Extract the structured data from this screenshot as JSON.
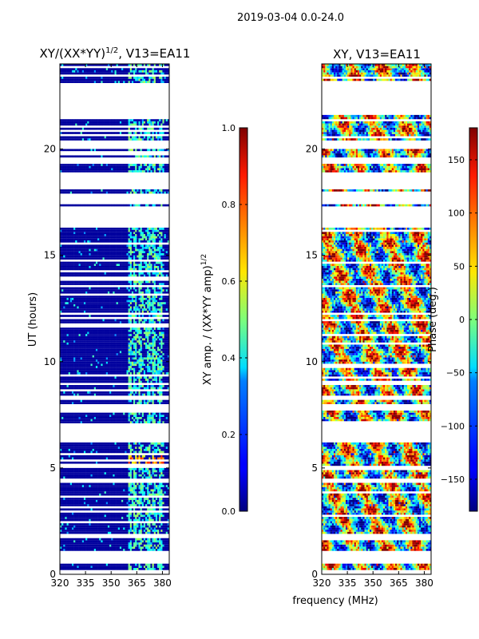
{
  "suptitle": "2019-03-04 0.0-24.0",
  "xlabel_common": "frequency (MHz)",
  "chart_data": [
    {
      "type": "heatmap",
      "title": "XY/(XX*YY)",
      "title_exp": "1/2",
      "title_suffix": ", V13=EA11",
      "ylabel": "UT (hours)",
      "xlabel": "",
      "xlim": [
        320,
        384
      ],
      "ylim": [
        0,
        24
      ],
      "xticks": [
        "320",
        "335",
        "350",
        "365",
        "380"
      ],
      "xtick_values": [
        320,
        335,
        350,
        365,
        380
      ],
      "yticks": [
        "0",
        "5",
        "10",
        "15",
        "20"
      ],
      "ytick_values": [
        0,
        5,
        10,
        15,
        20
      ],
      "colorbar": {
        "label": "XY amp. / (XX*YY amp)",
        "label_exp": "1/2",
        "range": [
          0.0,
          1.0
        ],
        "ticks": [
          "0.0",
          "0.2",
          "0.4",
          "0.6",
          "0.8",
          "1.0"
        ],
        "tick_values": [
          0.0,
          0.2,
          0.4,
          0.6,
          0.8,
          1.0
        ]
      },
      "colormap": "jet",
      "gap_hours": [
        [
          23.05,
          21.65
        ],
        [
          20.35,
          20.05
        ],
        [
          19.55,
          19.35
        ],
        [
          18.85,
          18.1
        ],
        [
          17.9,
          17.45
        ],
        [
          17.25,
          16.35
        ],
        [
          8.4,
          8.2
        ],
        [
          7.95,
          7.75
        ],
        [
          7.1,
          6.25
        ],
        [
          4.5,
          4.35
        ],
        [
          1.95,
          1.75
        ],
        [
          1.1,
          0.55
        ],
        [
          0.2,
          0.0
        ]
      ],
      "bright_band_mhz": [
        361,
        364,
        367,
        372,
        375,
        379
      ],
      "hot_spot_hours": [
        5.0,
        5.6
      ]
    },
    {
      "type": "heatmap",
      "title": "XY, V13=EA11",
      "ylabel": "",
      "xlabel": "frequency (MHz)",
      "xlim": [
        320,
        384
      ],
      "ylim": [
        0,
        24
      ],
      "xticks": [
        "320",
        "335",
        "350",
        "365",
        "380"
      ],
      "xtick_values": [
        320,
        335,
        350,
        365,
        380
      ],
      "yticks": [
        "0",
        "5",
        "10",
        "15",
        "20"
      ],
      "ytick_values": [
        0,
        5,
        10,
        15,
        20
      ],
      "colorbar": {
        "label": "Phase (deg.)",
        "range": [
          -180,
          180
        ],
        "ticks": [
          "−150",
          "−100",
          "−50",
          "0",
          "50",
          "100",
          "150"
        ],
        "tick_values": [
          -150,
          -100,
          -50,
          0,
          50,
          100,
          150
        ]
      },
      "colormap": "jet",
      "gap_hours": [
        [
          23.05,
          21.65
        ],
        [
          20.35,
          20.05
        ],
        [
          19.55,
          19.35
        ],
        [
          18.85,
          18.1
        ],
        [
          17.9,
          17.45
        ],
        [
          17.25,
          16.35
        ],
        [
          8.4,
          8.2
        ],
        [
          7.95,
          7.75
        ],
        [
          7.1,
          6.25
        ],
        [
          4.5,
          4.35
        ],
        [
          1.95,
          1.75
        ],
        [
          1.1,
          0.55
        ],
        [
          0.2,
          0.0
        ]
      ]
    }
  ]
}
